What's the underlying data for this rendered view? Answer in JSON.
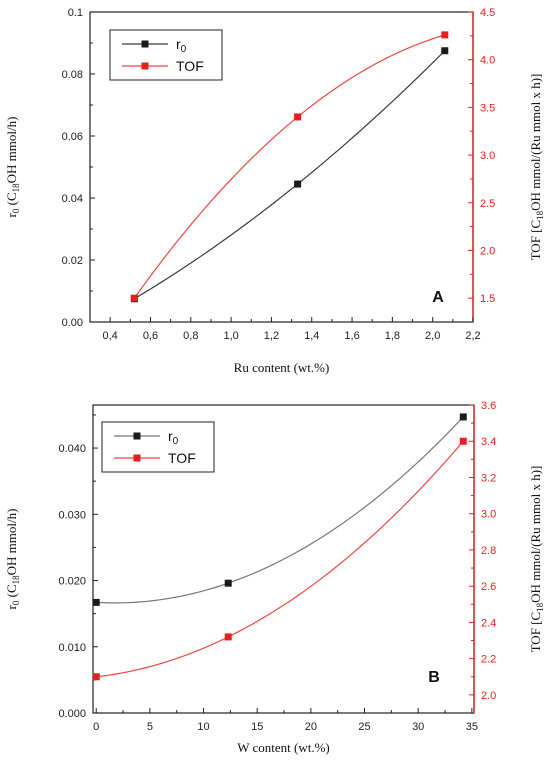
{
  "chart_data": [
    {
      "type": "line",
      "panel": "A",
      "x": [
        0.52,
        1.33,
        2.06
      ],
      "xlabel": "Ru content (wt.%)",
      "xlim": [
        0.3,
        2.2
      ],
      "xticks": [
        "0,4",
        "0,6",
        "0,8",
        "1,0",
        "1,2",
        "1,4",
        "1,6",
        "1,8",
        "2,0",
        "2,2"
      ],
      "ylabel": "r<sub>0</sub> (C<sub>18</sub>OH mmol/h)",
      "ylim": [
        0,
        0.1
      ],
      "yticks": [
        "0.00",
        "0.02",
        "0.04",
        "0.06",
        "0.08",
        "0.1"
      ],
      "y2label": "TOF [C<sub>18</sub>OH mmol/(Ru mmol x h)]",
      "y2lim": [
        1.25,
        4.5
      ],
      "y2ticks": [
        "1.5",
        "2.0",
        "2.5",
        "3.0",
        "3.5",
        "4.0",
        "4.5"
      ],
      "series": [
        {
          "name": "r<sub>0</sub>",
          "axis": "left",
          "color": "#3a3a3a",
          "marker": "#1a1a1a",
          "values": [
            0.0075,
            0.0445,
            0.0875
          ]
        },
        {
          "name": "TOF",
          "axis": "right",
          "color": "#ee4444",
          "marker": "#e61e1e",
          "values": [
            1.5,
            3.4,
            4.26
          ]
        }
      ],
      "legend": "top-left",
      "grid": false
    },
    {
      "type": "line",
      "panel": "B",
      "x": [
        0,
        12.3,
        34.2
      ],
      "xlabel": "W content (wt.%)",
      "xlim": [
        -0.3,
        35.2
      ],
      "xticks": [
        "0",
        "5",
        "10",
        "15",
        "20",
        "25",
        "30",
        "35"
      ],
      "ylabel": "r<sub>0</sub> (C<sub>18</sub>OH mmol/h)",
      "ylim": [
        0,
        0.0465
      ],
      "yticks": [
        "0.000",
        "0.010",
        "0.020",
        "0.030",
        "0.040"
      ],
      "y2label": "TOF [C<sub>18</sub>OH mmol/(Ru mmol x h)]",
      "y2lim": [
        1.9,
        3.6
      ],
      "y2ticks": [
        "2.0",
        "2.2",
        "2.4",
        "2.6",
        "2.8",
        "3.0",
        "3.2",
        "3.4",
        "3.6"
      ],
      "series": [
        {
          "name": "r<sub>0</sub>",
          "axis": "left",
          "color": "#777777",
          "marker": "#1a1a1a",
          "values": [
            0.0167,
            0.0196,
            0.0447
          ]
        },
        {
          "name": "TOF",
          "axis": "right",
          "color": "#ee4444",
          "marker": "#e61e1e",
          "values": [
            2.1,
            2.32,
            3.4
          ]
        }
      ],
      "legend": "top-left",
      "grid": false
    }
  ]
}
